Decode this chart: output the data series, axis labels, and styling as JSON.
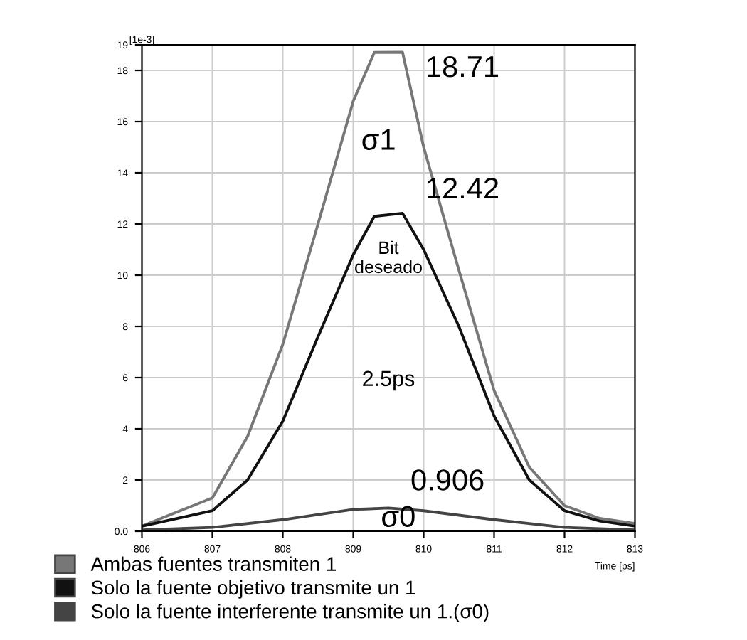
{
  "chart_data": {
    "type": "line",
    "ylabel": "[1e-3]",
    "xlabel": "Time [ps]",
    "xlim": [
      806,
      813
    ],
    "xticks": [
      {
        "value": 806,
        "label": "806"
      },
      {
        "value": 807,
        "label": "807"
      },
      {
        "value": 808,
        "label": "808"
      },
      {
        "value": 809,
        "label": "809"
      },
      {
        "value": 810,
        "label": "810"
      },
      {
        "value": 811,
        "label": "811"
      },
      {
        "value": 812,
        "label": "812"
      },
      {
        "value": 813,
        "label": "813"
      }
    ],
    "ylim": [
      0,
      19
    ],
    "yticks": [
      {
        "value": 0,
        "label": "0.0"
      },
      2,
      4,
      6,
      8,
      10,
      12,
      14,
      16,
      18,
      19
    ],
    "grid": true,
    "legend": "bottom",
    "marker": "none",
    "line_style": "solid",
    "series": [
      {
        "name": "Ambas fuentes transmiten 1",
        "color": "#777777",
        "x": [
          806,
          807,
          807.5,
          808,
          808.5,
          809,
          809.3,
          809.7,
          810,
          810.5,
          811,
          811.5,
          812,
          812.5,
          813
        ],
        "values": [
          0.2,
          1.3,
          3.7,
          7.3,
          12,
          16.8,
          18.7,
          18.71,
          15,
          10.2,
          5.5,
          2.5,
          1,
          0.5,
          0.3
        ]
      },
      {
        "name": "Solo la fuente objetivo transmite un 1",
        "color": "#111111",
        "x": [
          806,
          807,
          807.5,
          808,
          808.5,
          809,
          809.3,
          809.7,
          810,
          810.5,
          811,
          811.5,
          812,
          812.5,
          813
        ],
        "values": [
          0.2,
          0.8,
          2,
          4.3,
          7.6,
          10.8,
          12.3,
          12.42,
          11,
          8,
          4.5,
          2,
          0.8,
          0.4,
          0.2
        ]
      },
      {
        "name": "Solo la fuente interferente transmite un 1.(σ0)",
        "color": "#444444",
        "x": [
          806,
          807,
          808,
          809,
          809.5,
          810,
          811,
          812,
          813
        ],
        "values": [
          0.05,
          0.15,
          0.45,
          0.85,
          0.906,
          0.8,
          0.45,
          0.15,
          0.05
        ]
      }
    ],
    "annotations": [
      "18.71",
      "σ1",
      "12.42",
      "Bit\ndeseado",
      "2.5ps",
      "0.906",
      "σ0"
    ]
  }
}
